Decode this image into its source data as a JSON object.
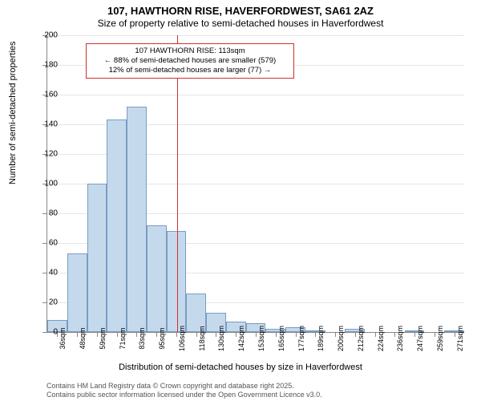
{
  "title": "107, HAWTHORN RISE, HAVERFORDWEST, SA61 2AZ",
  "subtitle": "Size of property relative to semi-detached houses in Haverfordwest",
  "ylabel": "Number of semi-detached properties",
  "xlabel": "Distribution of semi-detached houses by size in Haverfordwest",
  "footer1": "Contains HM Land Registry data © Crown copyright and database right 2025.",
  "footer2": "Contains public sector information licensed under the Open Government Licence v3.0.",
  "annot": {
    "line1": "107 HAWTHORN RISE: 113sqm",
    "line2": "← 88% of semi-detached houses are smaller (579)",
    "line3": "12% of semi-detached houses are larger (77) →",
    "ref_value": 113
  },
  "chart": {
    "type": "histogram",
    "ylim": [
      0,
      200
    ],
    "ytick_step": 20,
    "bin_width": 11.77,
    "x_start": 36,
    "background_color": "#ffffff",
    "grid_color": "#e6e6e6",
    "bar_fill": "#c5d9ed",
    "bar_border": "#7a9cc0",
    "axis_color": "#888888",
    "refline_color": "#d03030",
    "title_fontsize": 13,
    "subtitle_fontsize": 12,
    "label_fontsize": 11,
    "tick_fontsize": 10,
    "categories": [
      "36sqm",
      "48sqm",
      "59sqm",
      "71sqm",
      "83sqm",
      "95sqm",
      "106sqm",
      "118sqm",
      "130sqm",
      "142sqm",
      "153sqm",
      "165sqm",
      "177sqm",
      "189sqm",
      "200sqm",
      "212sqm",
      "224sqm",
      "236sqm",
      "247sqm",
      "259sqm",
      "271sqm"
    ],
    "values": [
      8,
      53,
      100,
      143,
      152,
      72,
      68,
      26,
      13,
      7,
      6,
      2,
      3,
      1,
      0,
      2,
      0,
      0,
      1,
      0,
      1
    ]
  }
}
